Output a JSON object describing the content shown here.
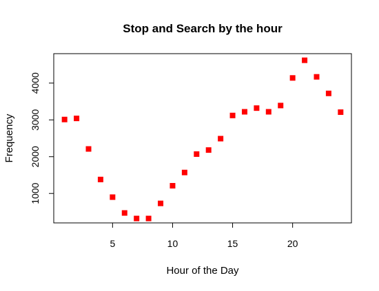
{
  "chart_data": {
    "type": "scatter",
    "title": "Stop and Search by the hour",
    "xlabel": "Hour of the Day",
    "ylabel": "Frequency",
    "xlim": [
      0.1,
      24.9
    ],
    "ylim": [
      200,
      4800
    ],
    "x_ticks": [
      5,
      10,
      15,
      20
    ],
    "y_ticks": [
      1000,
      2000,
      3000,
      4000
    ],
    "grid": false,
    "marker": "filled-square",
    "marker_color": "#ff0000",
    "series": [
      {
        "x": [
          1,
          2,
          3,
          4,
          5,
          6,
          7,
          8,
          9,
          10,
          11,
          12,
          13,
          14,
          15,
          16,
          17,
          18,
          19,
          20,
          21,
          22,
          23,
          24
        ],
        "values": [
          3010,
          3040,
          2210,
          1380,
          900,
          470,
          320,
          320,
          730,
          1210,
          1570,
          2070,
          2180,
          2490,
          3120,
          3220,
          3320,
          3220,
          3390,
          4140,
          4620,
          4170,
          3720,
          3210
        ]
      }
    ]
  }
}
